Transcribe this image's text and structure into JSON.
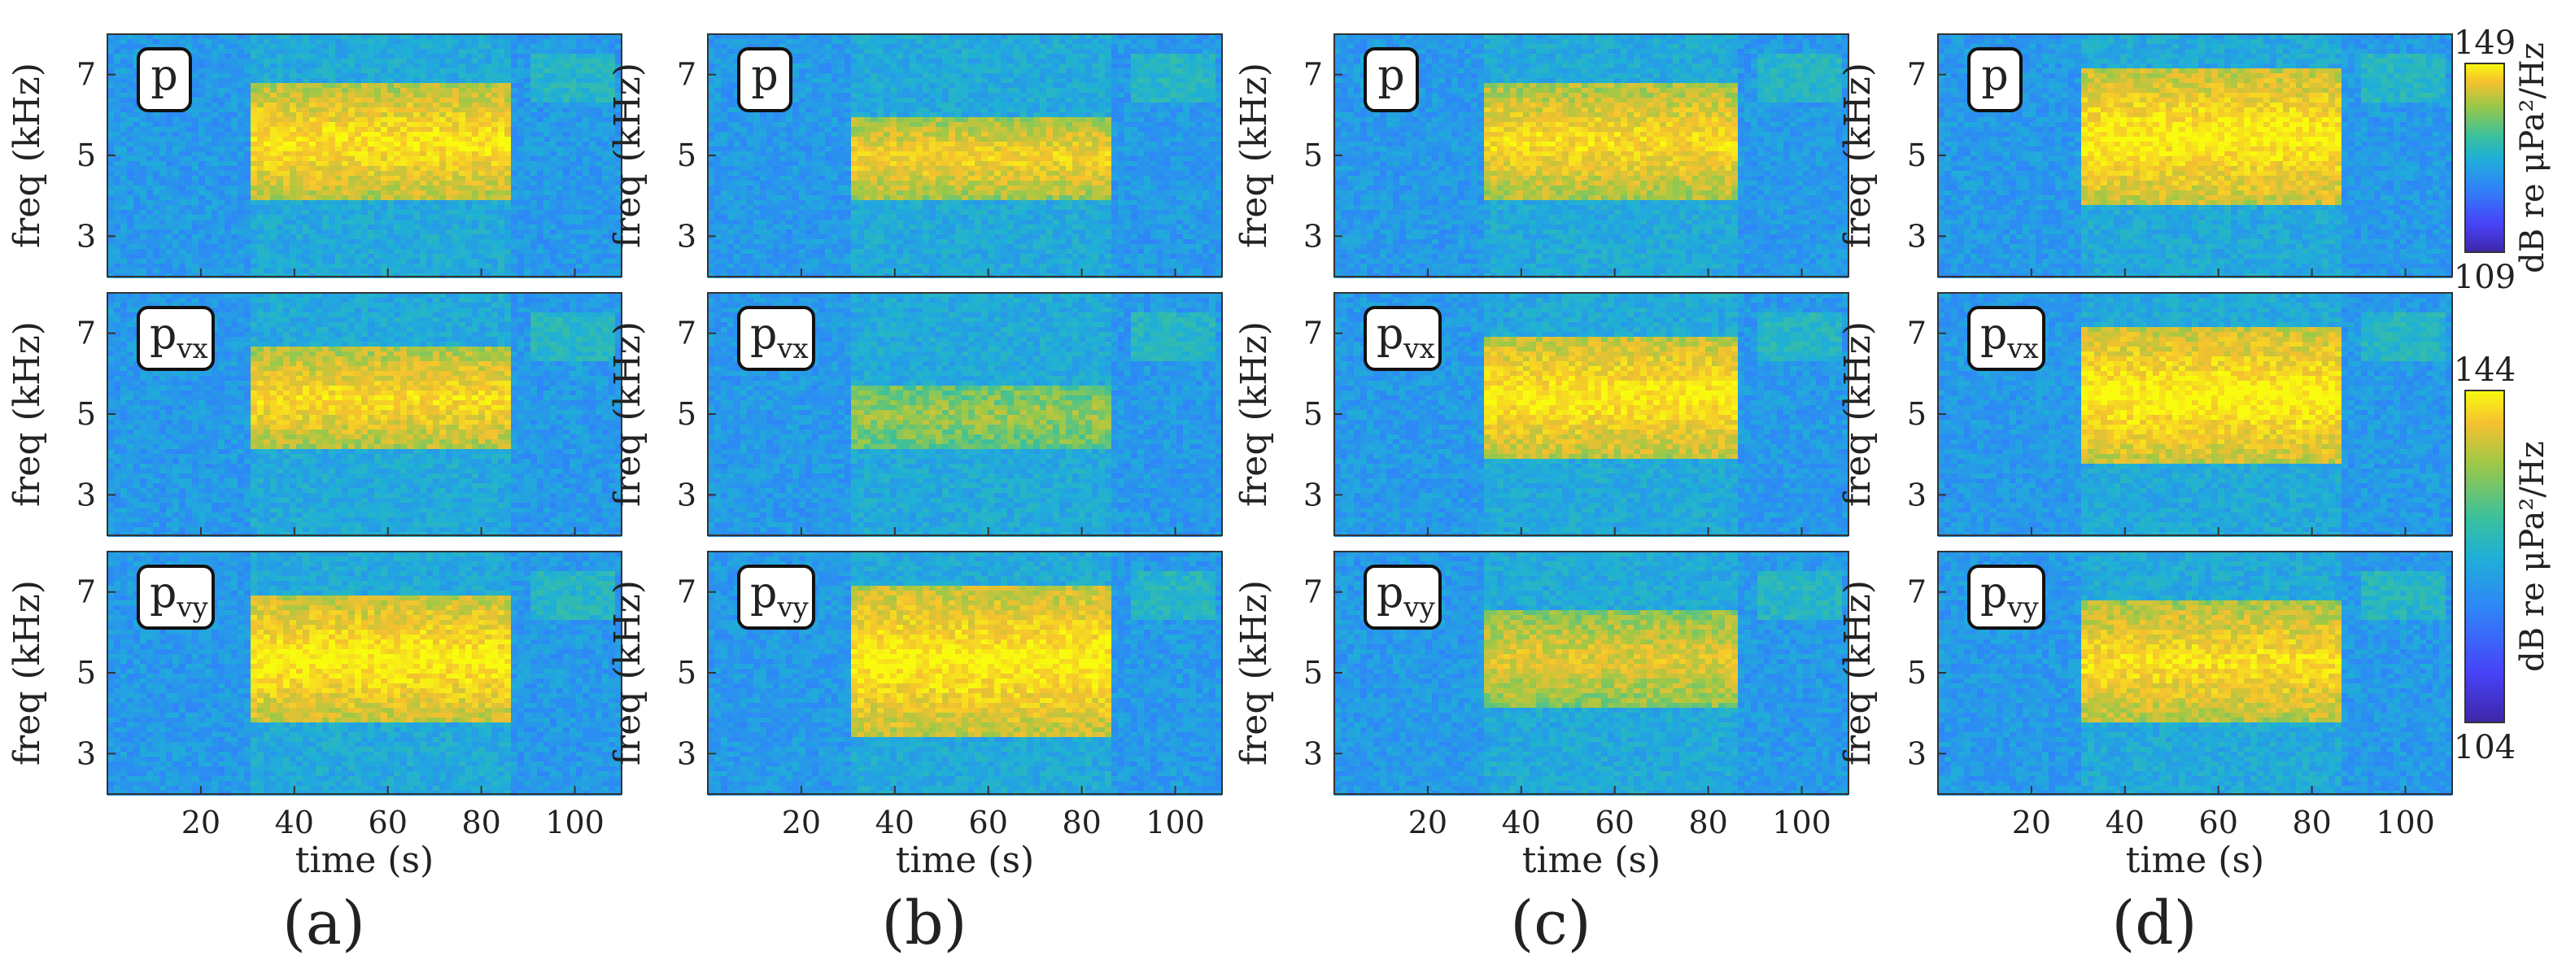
{
  "chart_data": {
    "type": "heatmap",
    "description_free": true,
    "xlabel": "time (s)",
    "ylabel": "freq (kHz)",
    "xlim": [
      0,
      110
    ],
    "ylim": [
      2,
      8
    ],
    "xticks": [
      20,
      40,
      60,
      80,
      100
    ],
    "yticks": [
      3,
      5,
      7
    ],
    "xtick_labels": [
      "20",
      "40",
      "60",
      "80",
      "100"
    ],
    "ytick_labels": [
      "3",
      "5",
      "7"
    ],
    "columns": [
      {
        "tag": "(a)",
        "rows": [
          {
            "channel": "p",
            "label_main": "p",
            "label_sub": "",
            "burst_start_s": 30,
            "burst_end_s": 85,
            "band_khz": [
              4.0,
              6.8
            ],
            "intensity": 0.85
          },
          {
            "channel": "pvx",
            "label_main": "p",
            "label_sub": "vx",
            "burst_start_s": 30,
            "burst_end_s": 85,
            "band_khz": [
              4.2,
              6.7
            ],
            "intensity": 0.8
          },
          {
            "channel": "pvy",
            "label_main": "p",
            "label_sub": "vy",
            "burst_start_s": 30,
            "burst_end_s": 85,
            "band_khz": [
              3.8,
              7.0
            ],
            "intensity": 0.9
          }
        ]
      },
      {
        "tag": "(b)",
        "rows": [
          {
            "channel": "p",
            "label_main": "p",
            "label_sub": "",
            "burst_start_s": 30,
            "burst_end_s": 86,
            "band_khz": [
              4.0,
              6.0
            ],
            "intensity": 0.75
          },
          {
            "channel": "pvx",
            "label_main": "p",
            "label_sub": "vx",
            "burst_start_s": 30,
            "burst_end_s": 86,
            "band_khz": [
              4.2,
              5.8
            ],
            "intensity": 0.45
          },
          {
            "channel": "pvy",
            "label_main": "p",
            "label_sub": "vy",
            "burst_start_s": 30,
            "burst_end_s": 86,
            "band_khz": [
              3.5,
              7.2
            ],
            "intensity": 0.9
          }
        ]
      },
      {
        "tag": "(c)",
        "rows": [
          {
            "channel": "p",
            "label_main": "p",
            "label_sub": "",
            "burst_start_s": 32,
            "burst_end_s": 86,
            "band_khz": [
              4.0,
              6.8
            ],
            "intensity": 0.8
          },
          {
            "channel": "pvx",
            "label_main": "p",
            "label_sub": "vx",
            "burst_start_s": 32,
            "burst_end_s": 86,
            "band_khz": [
              4.0,
              7.0
            ],
            "intensity": 0.88
          },
          {
            "channel": "pvy",
            "label_main": "p",
            "label_sub": "vy",
            "burst_start_s": 32,
            "burst_end_s": 86,
            "band_khz": [
              4.2,
              6.6
            ],
            "intensity": 0.65
          }
        ]
      },
      {
        "tag": "(d)",
        "rows": [
          {
            "channel": "p",
            "label_main": "p",
            "label_sub": "",
            "burst_start_s": 30,
            "burst_end_s": 86,
            "band_khz": [
              3.8,
              7.2
            ],
            "intensity": 0.9
          },
          {
            "channel": "pvx",
            "label_main": "p",
            "label_sub": "vx",
            "burst_start_s": 30,
            "burst_end_s": 86,
            "band_khz": [
              3.8,
              7.2
            ],
            "intensity": 0.92
          },
          {
            "channel": "pvy",
            "label_main": "p",
            "label_sub": "vy",
            "burst_start_s": 30,
            "burst_end_s": 86,
            "band_khz": [
              3.8,
              6.8
            ],
            "intensity": 0.82
          }
        ]
      }
    ],
    "colorbars": [
      {
        "min": 109,
        "max": 149,
        "min_label": "109",
        "max_label": "149",
        "applies_to_row": "p"
      },
      {
        "min": 104,
        "max": 144,
        "min_label": "104",
        "max_label": "144",
        "applies_to_row": "pvx,pvy"
      }
    ],
    "colorbar_label": "dB re μPa²/Hz",
    "colormap": [
      "#3e26a8",
      "#4743f8",
      "#2e87f7",
      "#1fb0d6",
      "#3dc19a",
      "#9ec846",
      "#f4c030",
      "#f9fb0e"
    ],
    "background_color": "#3a58c6"
  }
}
